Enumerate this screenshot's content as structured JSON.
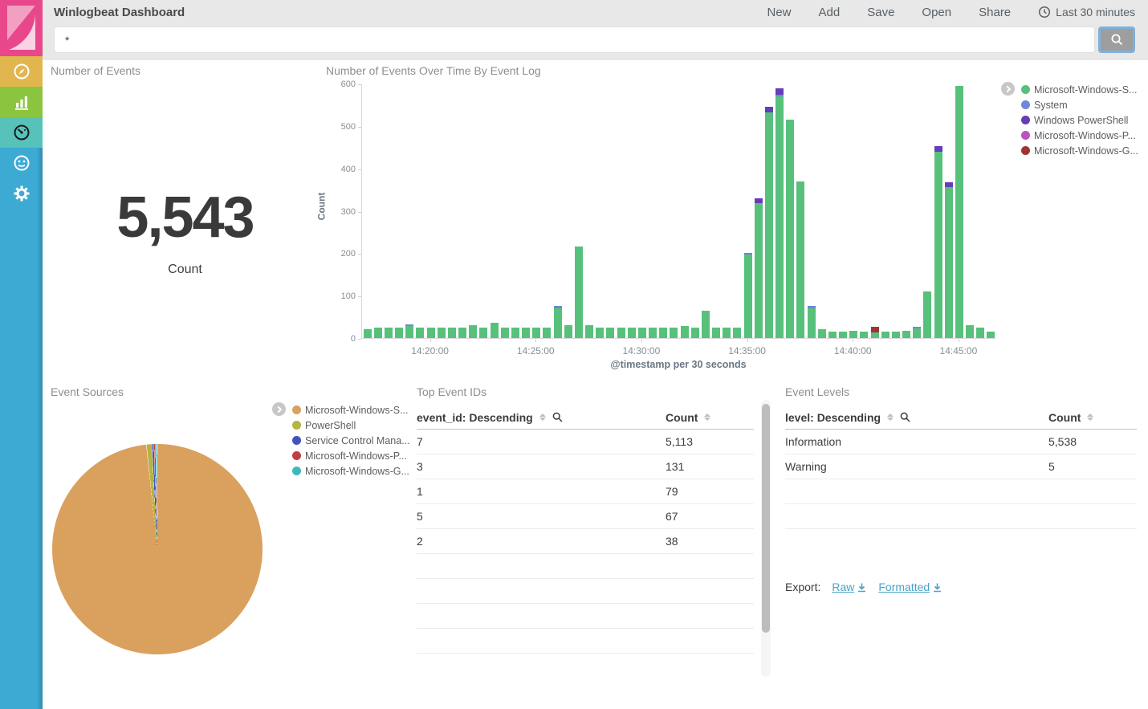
{
  "header": {
    "title": "Winlogbeat Dashboard",
    "nav": [
      "New",
      "Add",
      "Save",
      "Open",
      "Share"
    ],
    "time_picker": "Last 30 minutes"
  },
  "search": {
    "value": "*"
  },
  "sidebar": {
    "items": [
      "discover",
      "visualize",
      "dashboard",
      "timelion",
      "management"
    ],
    "active": "dashboard"
  },
  "metric_panel": {
    "title": "Number of Events",
    "value": "5,543",
    "label": "Count"
  },
  "histogram_panel": {
    "title": "Number of Events Over Time By Event Log",
    "ylabel": "Count",
    "xlabel": "@timestamp per 30 seconds"
  },
  "pie_panel": {
    "title": "Event Sources"
  },
  "top_event_ids": {
    "title": "Top Event IDs",
    "headers": [
      "event_id: Descending",
      "Count"
    ],
    "rows": [
      [
        "7",
        "5,113"
      ],
      [
        "3",
        "131"
      ],
      [
        "1",
        "79"
      ],
      [
        "5",
        "67"
      ],
      [
        "2",
        "38"
      ]
    ],
    "empty_rows": 4
  },
  "event_levels": {
    "title": "Event Levels",
    "headers": [
      "level: Descending",
      "Count"
    ],
    "rows": [
      [
        "Information",
        "5,538"
      ],
      [
        "Warning",
        "5"
      ]
    ],
    "empty_rows": 2,
    "export_label": "Export:",
    "export_links": [
      "Raw",
      "Formatted"
    ]
  },
  "chart_data": [
    {
      "type": "bar",
      "stacked": true,
      "title": "Number of Events Over Time By Event Log",
      "xlabel": "@timestamp per 30 seconds",
      "ylabel": "Count",
      "ylim": [
        0,
        600
      ],
      "y_ticks": [
        0,
        100,
        200,
        300,
        400,
        500,
        600
      ],
      "x_start": "14:16:30",
      "x_interval_seconds": 30,
      "x_tick_labels": [
        {
          "label": "14:20:00",
          "index": 6
        },
        {
          "label": "14:25:00",
          "index": 16
        },
        {
          "label": "14:30:00",
          "index": 26
        },
        {
          "label": "14:35:00",
          "index": 36
        },
        {
          "label": "14:40:00",
          "index": 46
        },
        {
          "label": "14:45:00",
          "index": 56
        }
      ],
      "legend_position": "right",
      "series_names": [
        "Microsoft-Windows-S...",
        "System",
        "Windows PowerShell",
        "Microsoft-Windows-G..."
      ],
      "series_colors": [
        "#57c17b",
        "#6f87d8",
        "#663db8",
        "#9e3533"
      ],
      "legend": [
        {
          "label": "Microsoft-Windows-S...",
          "color": "#57c17b"
        },
        {
          "label": "System",
          "color": "#6f87d8"
        },
        {
          "label": "Windows PowerShell",
          "color": "#663db8"
        },
        {
          "label": "Microsoft-Windows-P...",
          "color": "#bc52bc"
        },
        {
          "label": "Microsoft-Windows-G...",
          "color": "#9e3533"
        }
      ],
      "bars": [
        [
          20,
          0,
          0,
          0
        ],
        [
          24,
          0,
          0,
          0
        ],
        [
          24,
          0,
          0,
          0
        ],
        [
          24,
          0,
          0,
          0
        ],
        [
          28,
          4,
          0,
          0
        ],
        [
          24,
          0,
          0,
          0
        ],
        [
          24,
          0,
          0,
          0
        ],
        [
          24,
          0,
          0,
          0
        ],
        [
          24,
          0,
          0,
          0
        ],
        [
          24,
          0,
          0,
          0
        ],
        [
          30,
          0,
          0,
          0
        ],
        [
          24,
          0,
          0,
          0
        ],
        [
          36,
          0,
          0,
          0
        ],
        [
          24,
          0,
          0,
          0
        ],
        [
          24,
          0,
          0,
          0
        ],
        [
          24,
          0,
          0,
          0
        ],
        [
          24,
          0,
          0,
          0
        ],
        [
          24,
          0,
          0,
          0
        ],
        [
          71,
          4,
          0,
          0
        ],
        [
          30,
          0,
          0,
          0
        ],
        [
          215,
          0,
          0,
          0
        ],
        [
          30,
          0,
          0,
          0
        ],
        [
          24,
          0,
          0,
          0
        ],
        [
          24,
          0,
          0,
          0
        ],
        [
          24,
          0,
          0,
          0
        ],
        [
          24,
          0,
          0,
          0
        ],
        [
          24,
          0,
          0,
          0
        ],
        [
          24,
          0,
          0,
          0
        ],
        [
          24,
          0,
          0,
          0
        ],
        [
          24,
          0,
          0,
          0
        ],
        [
          28,
          0,
          0,
          0
        ],
        [
          24,
          0,
          0,
          0
        ],
        [
          65,
          0,
          0,
          0
        ],
        [
          24,
          0,
          0,
          0
        ],
        [
          24,
          0,
          0,
          0
        ],
        [
          24,
          0,
          0,
          0
        ],
        [
          196,
          4,
          0,
          0
        ],
        [
          318,
          0,
          12,
          0
        ],
        [
          532,
          0,
          13,
          0
        ],
        [
          570,
          4,
          14,
          0
        ],
        [
          515,
          0,
          0,
          0
        ],
        [
          370,
          0,
          0,
          0
        ],
        [
          71,
          4,
          0,
          0
        ],
        [
          20,
          0,
          0,
          0
        ],
        [
          15,
          0,
          0,
          0
        ],
        [
          15,
          0,
          0,
          0
        ],
        [
          18,
          0,
          0,
          0
        ],
        [
          15,
          0,
          0,
          0
        ],
        [
          13,
          0,
          0,
          13
        ],
        [
          15,
          0,
          0,
          0
        ],
        [
          15,
          0,
          0,
          0
        ],
        [
          18,
          0,
          0,
          0
        ],
        [
          22,
          4,
          0,
          0
        ],
        [
          110,
          0,
          0,
          0
        ],
        [
          440,
          0,
          12,
          0
        ],
        [
          356,
          0,
          12,
          0
        ],
        [
          595,
          0,
          0,
          0
        ],
        [
          30,
          0,
          0,
          0
        ],
        [
          25,
          0,
          0,
          0
        ],
        [
          15,
          0,
          0,
          0
        ]
      ]
    },
    {
      "type": "pie",
      "title": "Event Sources",
      "slices": [
        {
          "label": "Microsoft-Windows-S...",
          "color": "#daa05d",
          "percent": 98.3
        },
        {
          "label": "PowerShell",
          "color": "#b6b340",
          "percent": 0.75
        },
        {
          "label": "Service Control Mana...",
          "color": "#4053bf",
          "percent": 0.25
        },
        {
          "label": "Microsoft-Windows-P...",
          "color": "#bf4042",
          "percent": 0.17
        },
        {
          "label": "Microsoft-Windows-G...",
          "color": "#3fb8bd",
          "percent": 0.14
        }
      ],
      "legend_position": "right"
    }
  ]
}
